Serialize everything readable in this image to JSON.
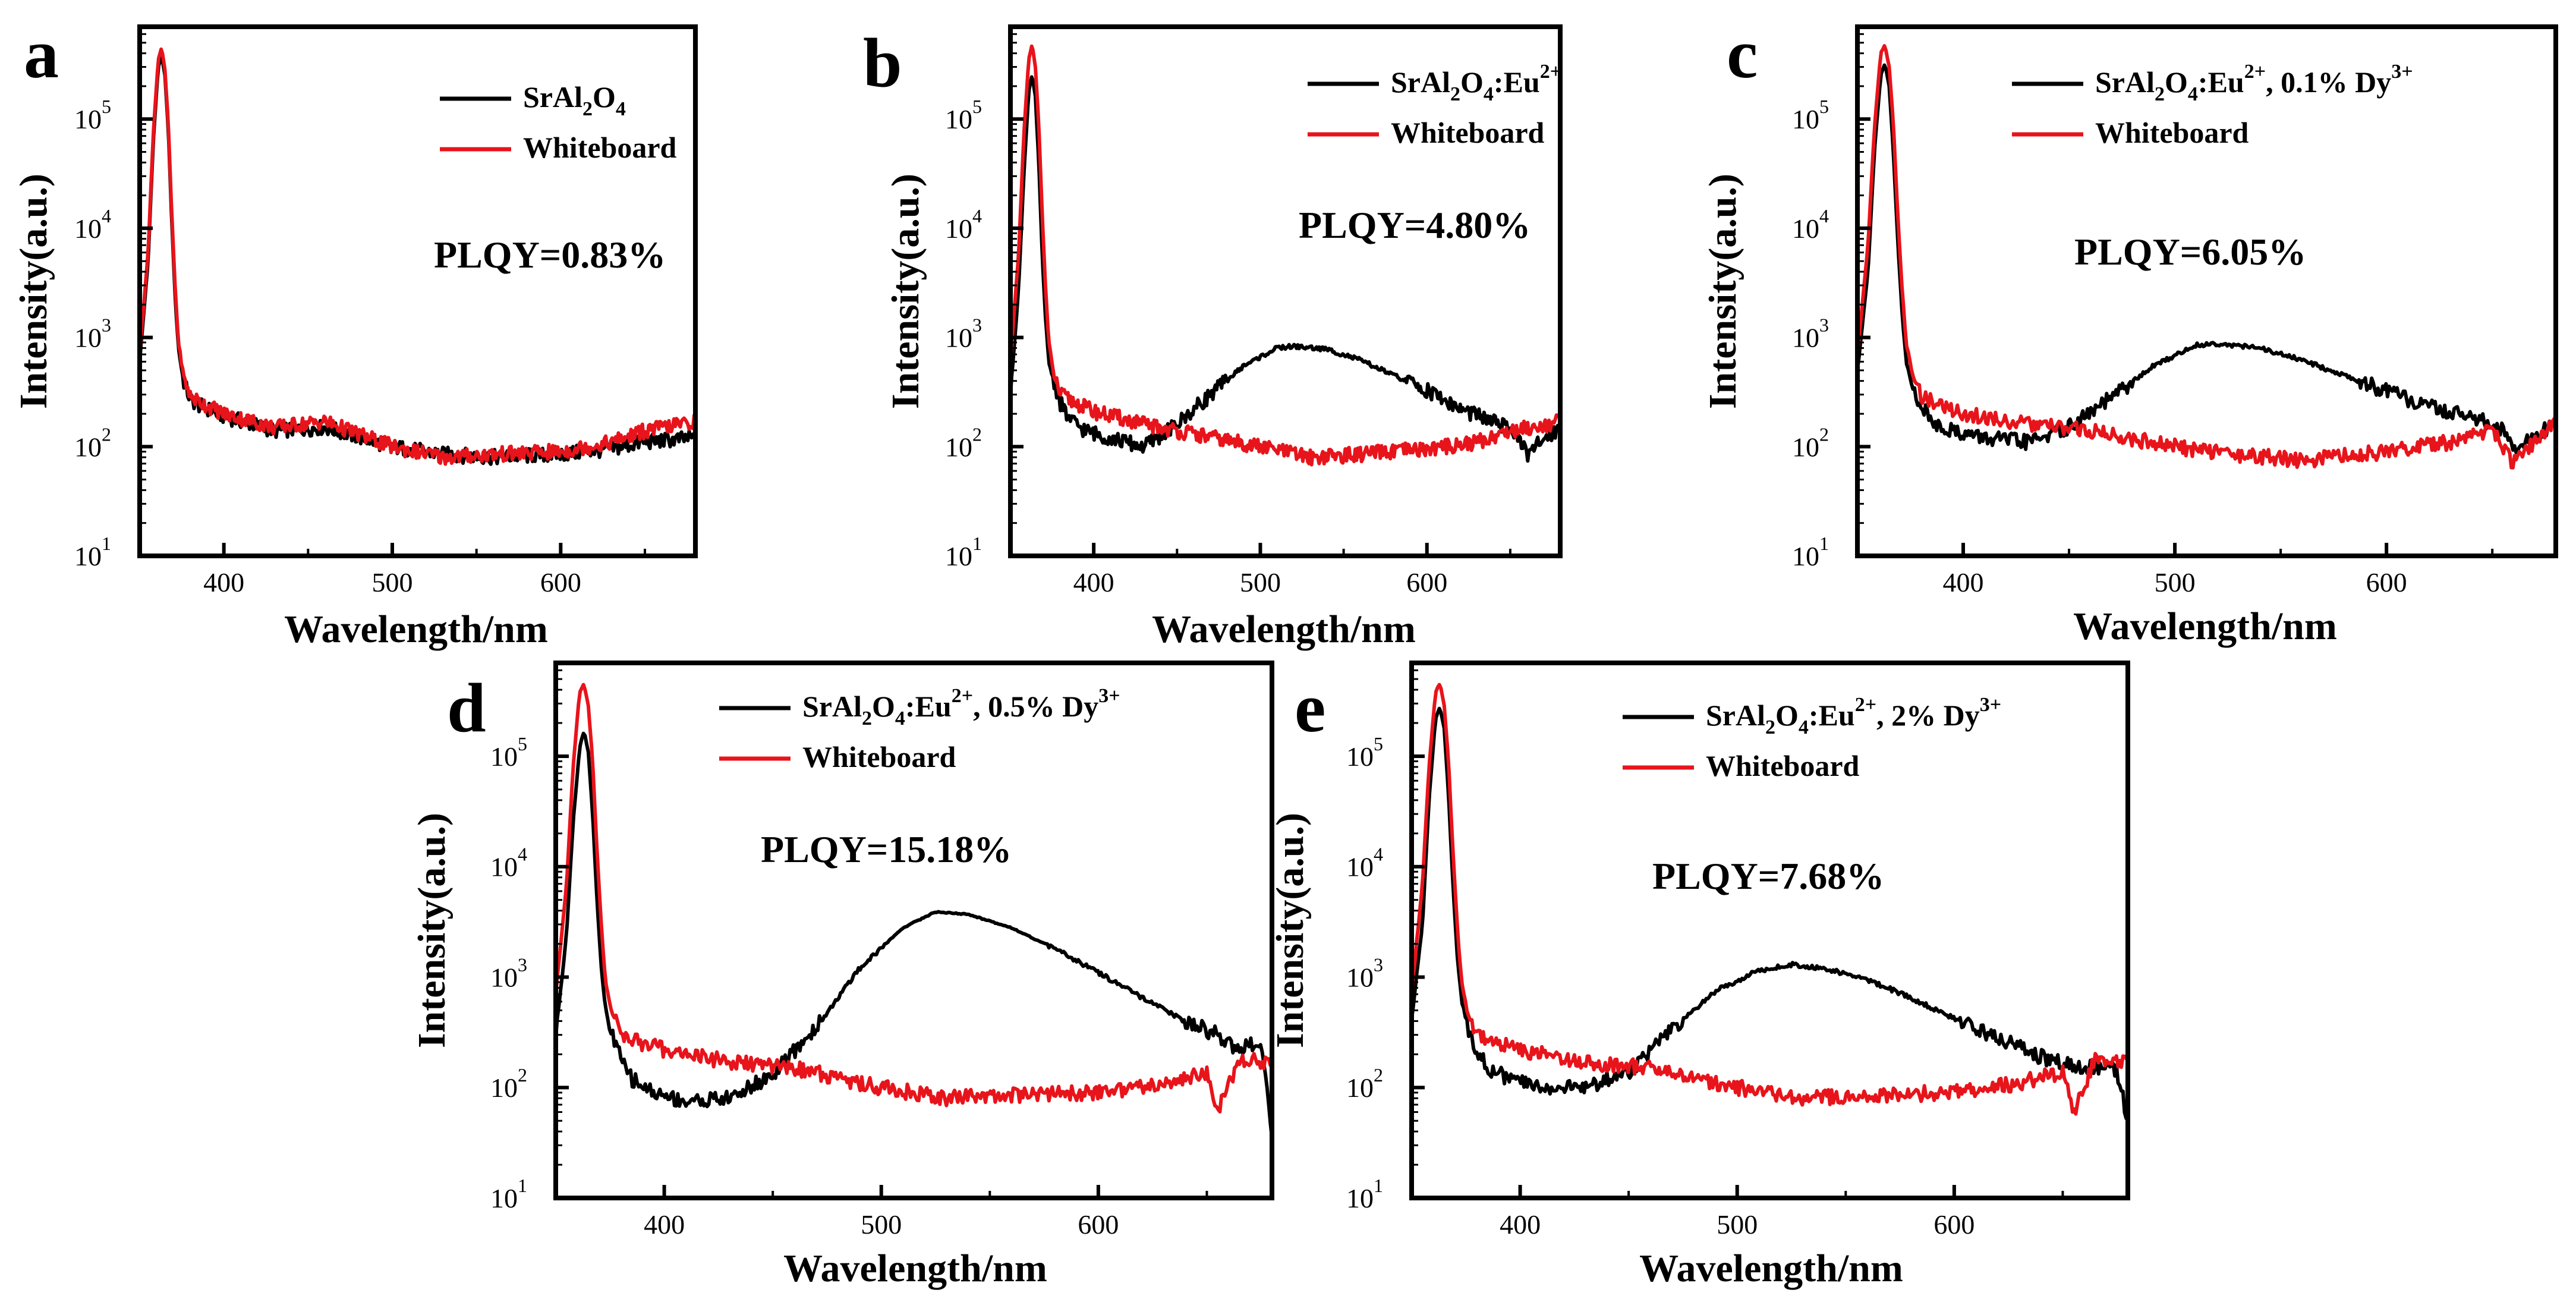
{
  "chart_data": [
    {
      "type": "line",
      "panel": "a",
      "xlabel": "Wavelength/nm",
      "ylabel": "Intensity(a.u.)",
      "xlim": [
        350,
        680
      ],
      "ylim": [
        10,
        700000
      ],
      "yscale": "log",
      "xticks": [
        400,
        500,
        600
      ],
      "yticks": [
        "10^1",
        "10^2",
        "10^3",
        "10^4",
        "10^5"
      ],
      "annotation": "PLQY=0.83%",
      "legend": [
        {
          "label": "SrAl2O4",
          "color": "#000000"
        },
        {
          "label": "Whiteboard",
          "color": "#e8141b"
        }
      ],
      "series": [
        {
          "name": "SrAl2O4",
          "color": "#000000",
          "x": [
            350,
            355,
            358,
            361,
            363,
            365,
            367,
            369,
            371,
            373,
            376,
            380,
            385,
            400,
            430,
            460,
            500,
            530,
            560,
            600,
            630,
            650,
            680
          ],
          "y": [
            600,
            5000,
            60000,
            300000,
            380000,
            250000,
            80000,
            12000,
            2500,
            800,
            400,
            270,
            240,
            190,
            140,
            150,
            100,
            85,
            80,
            85,
            95,
            110,
            120
          ]
        },
        {
          "name": "Whiteboard",
          "color": "#e8141b",
          "x": [
            350,
            355,
            358,
            361,
            363,
            365,
            367,
            369,
            371,
            373,
            376,
            380,
            385,
            400,
            430,
            460,
            500,
            530,
            560,
            600,
            630,
            650,
            680
          ],
          "y": [
            700,
            6000,
            70000,
            350000,
            450000,
            280000,
            90000,
            14000,
            3000,
            900,
            450,
            290,
            260,
            200,
            150,
            170,
            100,
            80,
            85,
            90,
            110,
            140,
            170
          ]
        }
      ]
    },
    {
      "type": "line",
      "panel": "b",
      "xlabel": "Wavelength/nm",
      "ylabel": "Intensity(a.u.)",
      "xlim": [
        350,
        680
      ],
      "ylim": [
        10,
        700000
      ],
      "yscale": "log",
      "xticks": [
        400,
        500,
        600
      ],
      "yticks": [
        "10^1",
        "10^2",
        "10^3",
        "10^4",
        "10^5"
      ],
      "annotation": "PLQY=4.80%",
      "legend": [
        {
          "label": "SrAl2O4:Eu2+",
          "color": "#000000"
        },
        {
          "label": "Whiteboard",
          "color": "#e8141b"
        }
      ],
      "series": [
        {
          "name": "SrAl2O4:Eu2+",
          "color": "#000000",
          "x": [
            350,
            355,
            358,
            361,
            363,
            365,
            367,
            369,
            371,
            373,
            376,
            380,
            385,
            395,
            410,
            430,
            450,
            470,
            490,
            510,
            520,
            540,
            560,
            580,
            600,
            620,
            640,
            655,
            660,
            670,
            680
          ],
          "y": [
            300,
            3000,
            30000,
            180000,
            250000,
            160000,
            40000,
            6000,
            1500,
            600,
            400,
            250,
            180,
            140,
            120,
            100,
            160,
            300,
            550,
            800,
            830,
            780,
            620,
            450,
            330,
            220,
            170,
            130,
            80,
            120,
            150
          ]
        },
        {
          "name": "Whiteboard",
          "color": "#e8141b",
          "x": [
            350,
            355,
            358,
            361,
            363,
            365,
            367,
            369,
            371,
            373,
            376,
            380,
            385,
            400,
            430,
            460,
            500,
            530,
            560,
            600,
            630,
            650,
            680
          ],
          "y": [
            600,
            6000,
            70000,
            350000,
            480000,
            300000,
            90000,
            14000,
            3000,
            900,
            450,
            300,
            270,
            210,
            160,
            130,
            100,
            80,
            85,
            95,
            110,
            140,
            170
          ]
        }
      ]
    },
    {
      "type": "line",
      "panel": "c",
      "xlabel": "Wavelength/nm",
      "ylabel": "Intensity(a.u.)",
      "xlim": [
        350,
        680
      ],
      "ylim": [
        10,
        700000
      ],
      "yscale": "log",
      "xticks": [
        400,
        500,
        600
      ],
      "yticks": [
        "10^1",
        "10^2",
        "10^3",
        "10^4",
        "10^5"
      ],
      "annotation": "PLQY=6.05%",
      "legend": [
        {
          "label": "SrAl2O4:Eu2+, 0.1% Dy3+",
          "color": "#000000"
        },
        {
          "label": "Whiteboard",
          "color": "#e8141b"
        }
      ],
      "series": [
        {
          "name": "SrAl2O4:Eu2+, 0.1% Dy3+",
          "color": "#000000",
          "x": [
            350,
            355,
            358,
            361,
            363,
            365,
            367,
            369,
            371,
            373,
            376,
            380,
            385,
            395,
            410,
            430,
            450,
            470,
            490,
            510,
            520,
            540,
            560,
            580,
            600,
            620,
            640,
            655,
            660,
            670,
            680
          ],
          "y": [
            500,
            4000,
            50000,
            250000,
            320000,
            200000,
            50000,
            8000,
            1800,
            600,
            350,
            240,
            170,
            140,
            120,
            110,
            150,
            280,
            550,
            850,
            880,
            800,
            620,
            450,
            320,
            230,
            190,
            140,
            90,
            130,
            160
          ]
        },
        {
          "name": "Whiteboard",
          "color": "#e8141b",
          "x": [
            350,
            355,
            358,
            361,
            363,
            365,
            367,
            369,
            371,
            373,
            376,
            380,
            385,
            400,
            430,
            460,
            500,
            530,
            560,
            600,
            630,
            650,
            660,
            680
          ],
          "y": [
            700,
            7000,
            80000,
            400000,
            480000,
            300000,
            90000,
            14000,
            3000,
            900,
            450,
            300,
            260,
            200,
            160,
            140,
            100,
            85,
            75,
            90,
            110,
            140,
            70,
            170
          ]
        }
      ]
    },
    {
      "type": "line",
      "panel": "d",
      "xlabel": "Wavelength/nm",
      "ylabel": "Intensity(a.u.)",
      "xlim": [
        350,
        680
      ],
      "ylim": [
        10,
        700000
      ],
      "yscale": "log",
      "xticks": [
        400,
        500,
        600
      ],
      "yticks": [
        "10^1",
        "10^2",
        "10^3",
        "10^4",
        "10^5"
      ],
      "annotation": "PLQY=15.18%",
      "legend": [
        {
          "label": "SrAl2O4:Eu2+, 0.5% Dy3+",
          "color": "#000000"
        },
        {
          "label": "Whiteboard",
          "color": "#e8141b"
        }
      ],
      "series": [
        {
          "name": "SrAl2O4:Eu2+, 0.5% Dy3+",
          "color": "#000000",
          "x": [
            350,
            355,
            358,
            361,
            363,
            365,
            367,
            369,
            371,
            373,
            376,
            380,
            385,
            395,
            410,
            430,
            450,
            470,
            490,
            510,
            525,
            540,
            560,
            580,
            600,
            620,
            640,
            655,
            665,
            675,
            680
          ],
          "y": [
            300,
            2500,
            25000,
            120000,
            170000,
            110000,
            30000,
            5000,
            1200,
            500,
            300,
            180,
            120,
            90,
            75,
            80,
            130,
            350,
            1200,
            2800,
            3900,
            3700,
            2800,
            1800,
            1100,
            650,
            400,
            300,
            220,
            260,
            40
          ]
        },
        {
          "name": "Whiteboard",
          "color": "#e8141b",
          "x": [
            350,
            355,
            358,
            361,
            363,
            365,
            367,
            369,
            371,
            373,
            376,
            380,
            385,
            400,
            430,
            460,
            500,
            530,
            560,
            600,
            630,
            650,
            655,
            665,
            680
          ],
          "y": [
            700,
            7000,
            80000,
            380000,
            450000,
            290000,
            90000,
            14000,
            3000,
            900,
            450,
            320,
            270,
            220,
            170,
            150,
            100,
            80,
            85,
            90,
            110,
            140,
            60,
            180,
            170
          ]
        }
      ]
    },
    {
      "type": "line",
      "panel": "e",
      "xlabel": "Wavelength/nm",
      "ylabel": "Intensity(a.u.)",
      "xlim": [
        350,
        680
      ],
      "ylim": [
        10,
        700000
      ],
      "yscale": "log",
      "xticks": [
        400,
        500,
        600
      ],
      "yticks": [
        "10^1",
        "10^2",
        "10^3",
        "10^4",
        "10^5"
      ],
      "annotation": "PLQY=7.68%",
      "legend": [
        {
          "label": "SrAl2O4:Eu2+, 2% Dy3+",
          "color": "#000000"
        },
        {
          "label": "Whiteboard",
          "color": "#e8141b"
        }
      ],
      "series": [
        {
          "name": "SrAl2O4:Eu2+, 2% Dy3+",
          "color": "#000000",
          "x": [
            350,
            355,
            358,
            361,
            363,
            365,
            367,
            369,
            371,
            373,
            376,
            380,
            385,
            395,
            410,
            430,
            450,
            470,
            490,
            510,
            525,
            540,
            560,
            580,
            600,
            620,
            640,
            655,
            665,
            675,
            680
          ],
          "y": [
            400,
            3000,
            40000,
            220000,
            280000,
            180000,
            45000,
            7000,
            1600,
            600,
            350,
            220,
            150,
            120,
            100,
            100,
            140,
            330,
            750,
            1150,
            1300,
            1200,
            950,
            650,
            420,
            280,
            190,
            160,
            150,
            140,
            50
          ]
        },
        {
          "name": "Whiteboard",
          "color": "#e8141b",
          "x": [
            350,
            355,
            358,
            361,
            363,
            365,
            367,
            369,
            371,
            373,
            376,
            380,
            385,
            400,
            430,
            460,
            500,
            530,
            560,
            600,
            630,
            650,
            655,
            665,
            680
          ],
          "y": [
            700,
            7000,
            80000,
            380000,
            460000,
            290000,
            90000,
            14000,
            3000,
            900,
            450,
            320,
            270,
            220,
            170,
            150,
            100,
            80,
            85,
            90,
            110,
            140,
            60,
            180,
            170
          ]
        }
      ]
    }
  ]
}
